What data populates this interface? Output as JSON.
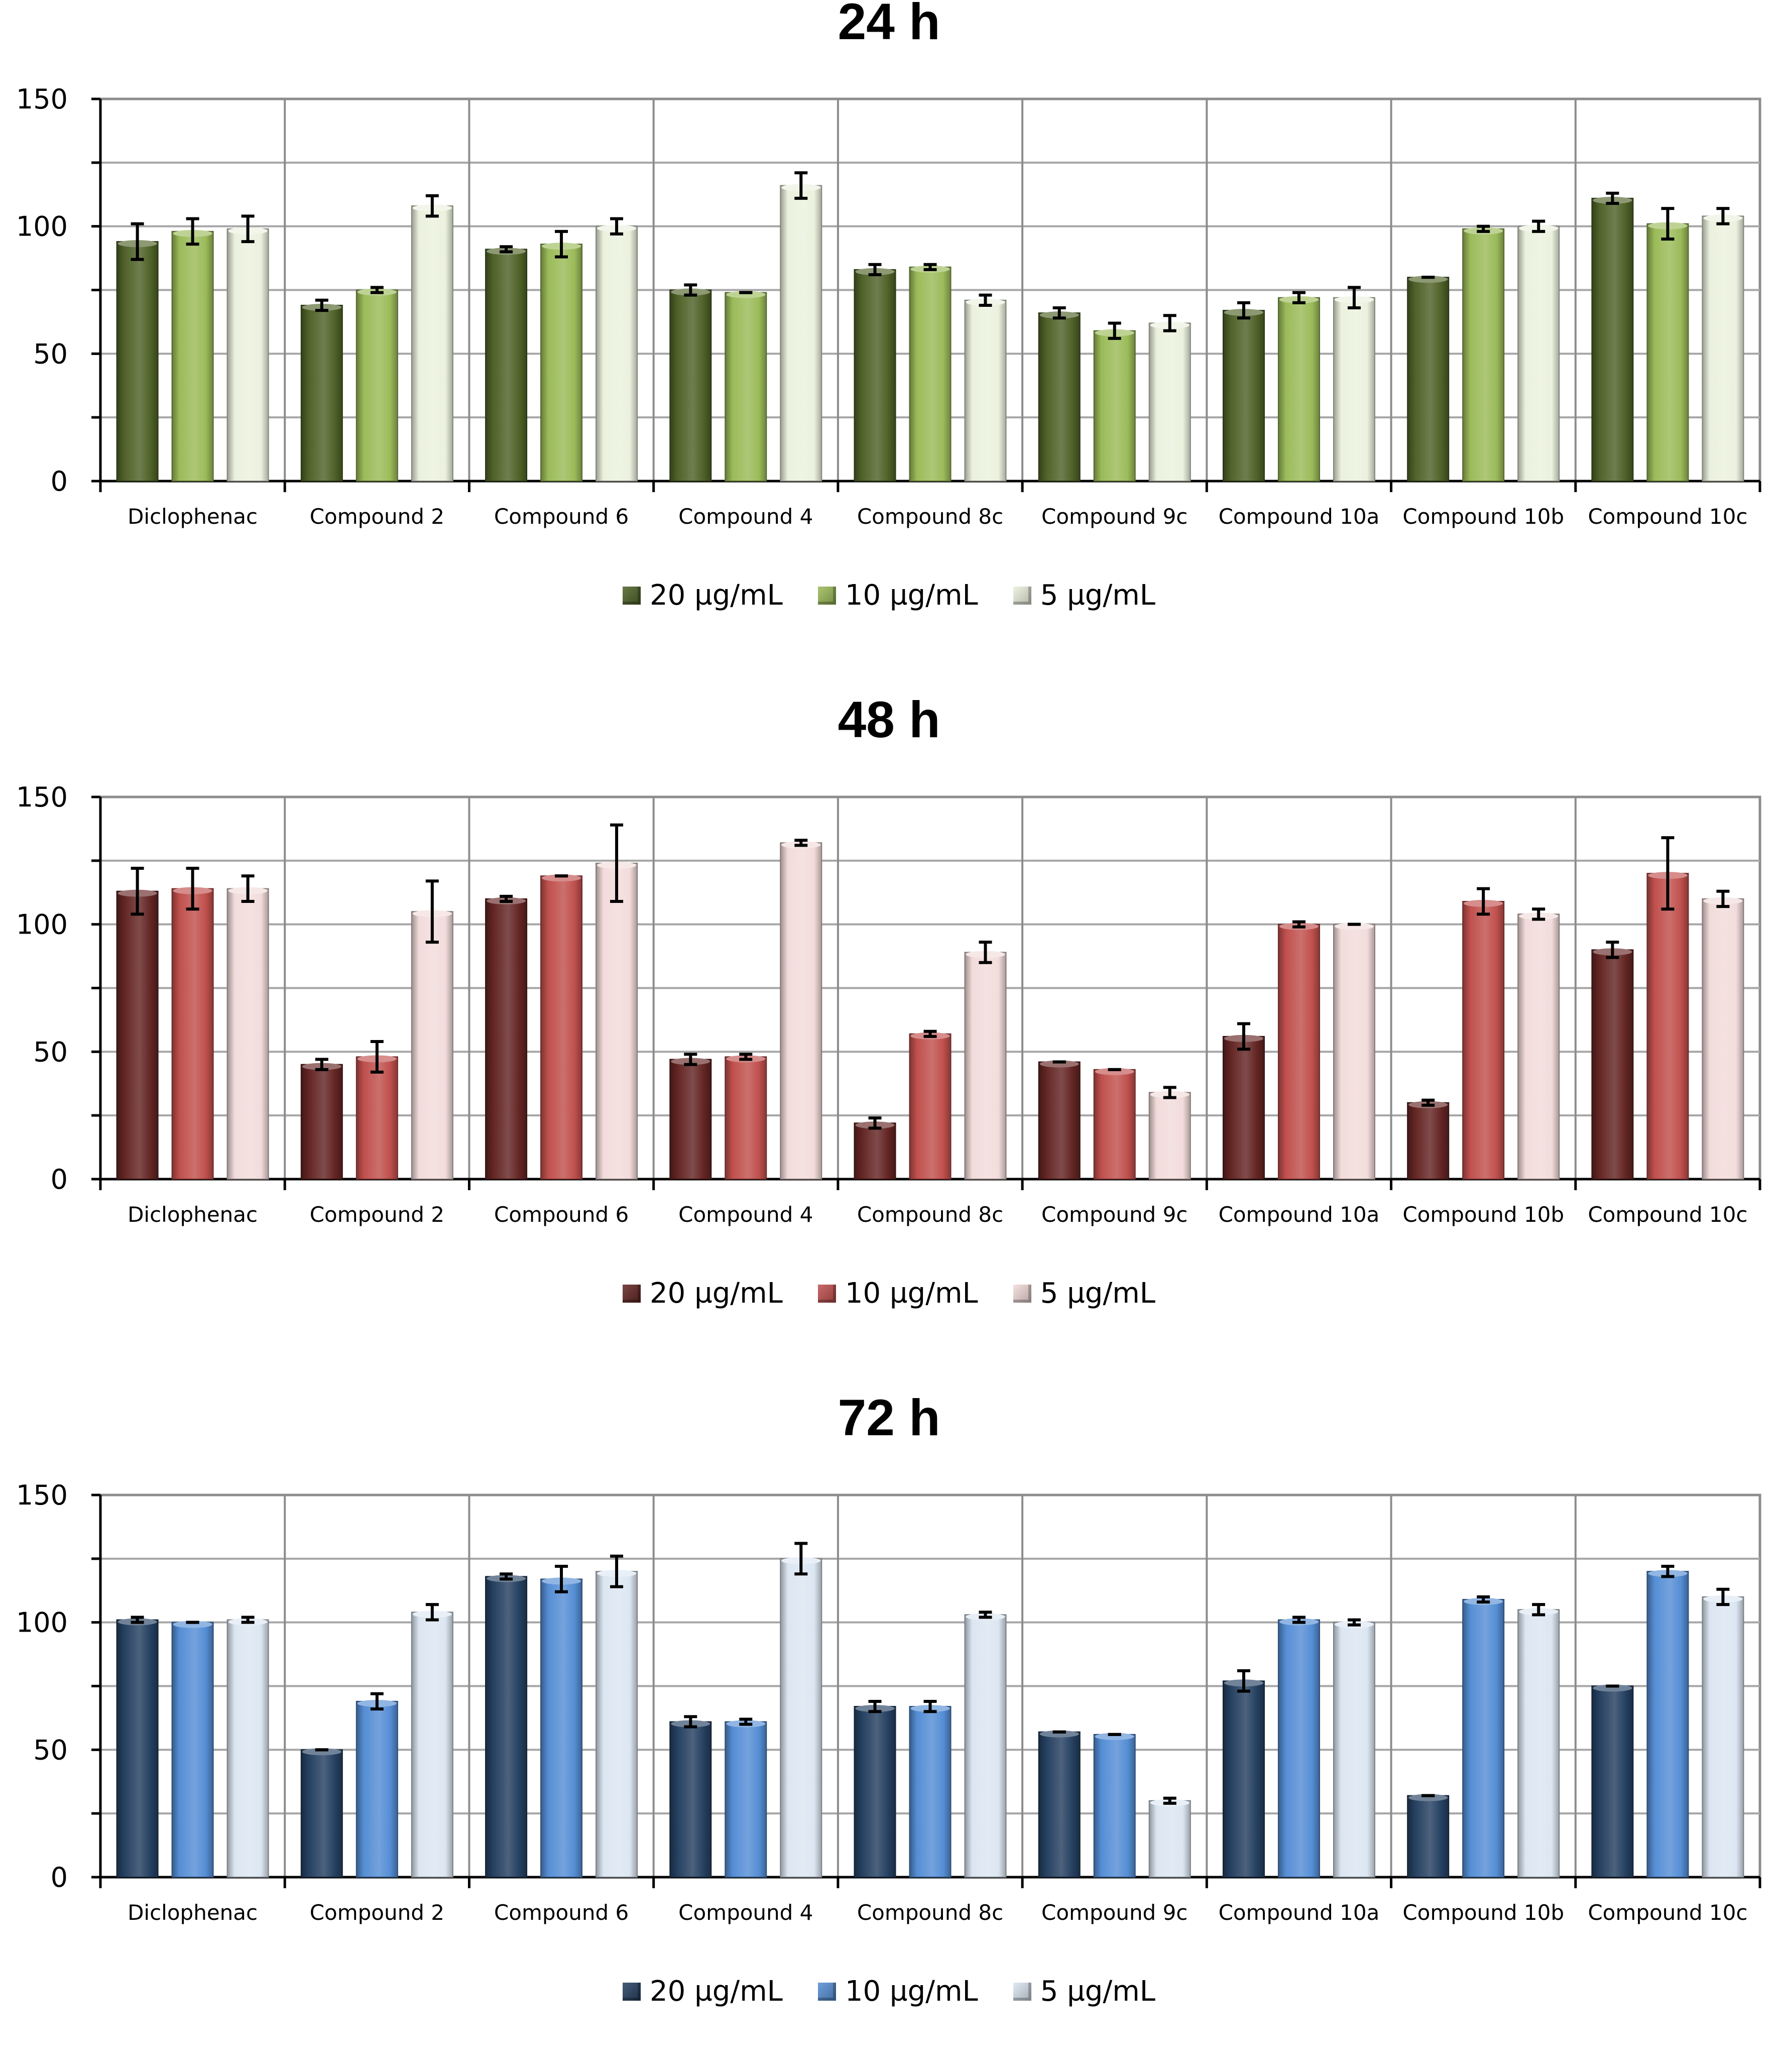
{
  "chart_data": [
    {
      "type": "bar",
      "title": "24 h",
      "ylim": [
        0,
        150
      ],
      "yticks": [
        0,
        50,
        100,
        150
      ],
      "grid": true,
      "legend_position": "bottom",
      "categories": [
        "Diclophenac",
        "Compound 2",
        "Compound 6",
        "Compound 4",
        "Compound 8c",
        "Compound 9c",
        "Compound 10a",
        "Compound 10b",
        "Compound 10c"
      ],
      "series": [
        {
          "name": "20 µg/mL",
          "color": "#4f6228",
          "values": [
            94,
            69,
            91,
            75,
            83,
            66,
            67,
            80,
            111
          ],
          "errors": [
            7,
            2,
            1,
            2,
            2,
            2,
            3,
            0,
            2
          ]
        },
        {
          "name": "10 µg/mL",
          "color": "#9bbb59",
          "values": [
            98,
            75,
            93,
            74,
            84,
            59,
            72,
            99,
            101
          ],
          "errors": [
            5,
            1,
            5,
            0,
            1,
            3,
            2,
            1,
            6
          ]
        },
        {
          "name": "5 µg/mL",
          "color": "#ebf1de",
          "values": [
            99,
            108,
            100,
            116,
            71,
            62,
            72,
            100,
            104
          ],
          "errors": [
            5,
            4,
            3,
            5,
            2,
            3,
            4,
            2,
            3
          ]
        }
      ]
    },
    {
      "type": "bar",
      "title": "48 h",
      "ylim": [
        0,
        150
      ],
      "yticks": [
        0,
        50,
        100,
        150
      ],
      "grid": true,
      "legend_position": "bottom",
      "categories": [
        "Diclophenac",
        "Compound 2",
        "Compound 6",
        "Compound 4",
        "Compound 8c",
        "Compound 9c",
        "Compound 10a",
        "Compound 10b",
        "Compound 10c"
      ],
      "series": [
        {
          "name": "20 µg/mL",
          "color": "#632523",
          "values": [
            113,
            45,
            110,
            47,
            22,
            46,
            56,
            30,
            90
          ],
          "errors": [
            9,
            2,
            1,
            2,
            2,
            0,
            5,
            1,
            3
          ]
        },
        {
          "name": "10 µg/mL",
          "color": "#c0504d",
          "values": [
            114,
            48,
            119,
            48,
            57,
            43,
            100,
            109,
            120
          ],
          "errors": [
            8,
            6,
            0,
            1,
            1,
            0,
            1,
            5,
            14
          ]
        },
        {
          "name": "5 µg/mL",
          "color": "#f2dcdb",
          "values": [
            114,
            105,
            124,
            132,
            89,
            34,
            100,
            104,
            110
          ],
          "errors": [
            5,
            12,
            15,
            1,
            4,
            2,
            0,
            2,
            3
          ]
        }
      ]
    },
    {
      "type": "bar",
      "title": "72 h",
      "ylim": [
        0,
        150
      ],
      "yticks": [
        0,
        50,
        100,
        150
      ],
      "grid": true,
      "legend_position": "bottom",
      "categories": [
        "Diclophenac",
        "Compound 2",
        "Compound 6",
        "Compound 4",
        "Compound 8c",
        "Compound 9c",
        "Compound 10a",
        "Compound 10b",
        "Compound 10c"
      ],
      "series": [
        {
          "name": "20 µg/mL",
          "color": "#254061",
          "values": [
            101,
            50,
            118,
            61,
            67,
            57,
            77,
            32,
            75
          ],
          "errors": [
            1,
            0,
            1,
            2,
            2,
            0,
            4,
            0,
            0
          ]
        },
        {
          "name": "10 µg/mL",
          "color": "#558ed5",
          "values": [
            100,
            69,
            117,
            61,
            67,
            56,
            101,
            109,
            120
          ],
          "errors": [
            0,
            3,
            5,
            1,
            2,
            0,
            1,
            1,
            2
          ]
        },
        {
          "name": "5 µg/mL",
          "color": "#dce6f2",
          "values": [
            101,
            104,
            120,
            125,
            103,
            30,
            100,
            105,
            110
          ],
          "errors": [
            1,
            3,
            6,
            6,
            1,
            1,
            1,
            2,
            3
          ]
        }
      ]
    }
  ]
}
